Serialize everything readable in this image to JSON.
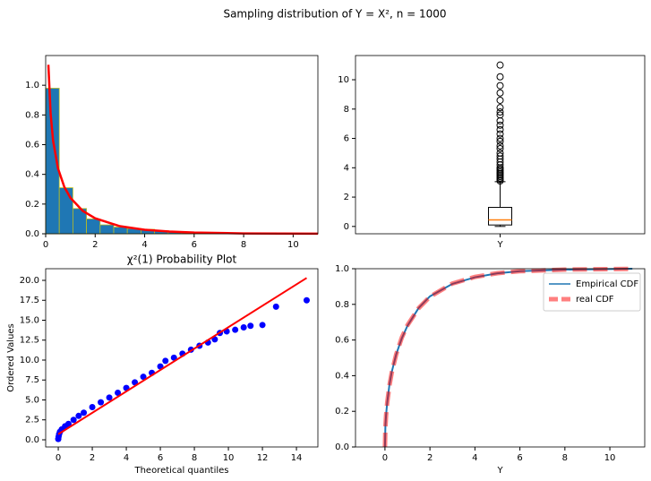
{
  "title": "Sampling distribution of Y = X², n = 1000",
  "chart_data": [
    {
      "type": "histogram",
      "xlim": [
        0,
        11
      ],
      "xticks": [
        0,
        2,
        4,
        6,
        8,
        10
      ],
      "ylim": [
        0,
        1.2
      ],
      "yticks": [
        {
          "value": 0,
          "label": "0.0"
        },
        0.2,
        0.4,
        0.6,
        0.8,
        {
          "value": 1,
          "label": "1.0"
        }
      ],
      "bins": [
        0,
        0.55,
        1.1,
        1.65,
        2.2,
        2.75,
        3.3,
        3.85,
        4.4,
        4.95,
        5.5,
        6.05,
        6.6,
        7.15,
        7.7,
        8.25,
        8.8,
        9.35,
        9.9,
        10.45,
        11
      ],
      "counts": [
        0.98,
        0.31,
        0.17,
        0.1,
        0.06,
        0.045,
        0.035,
        0.03,
        0.02,
        0.015,
        0.012,
        0.01,
        0.008,
        0.006,
        0.005,
        0.004,
        0.003,
        0.002,
        0.002,
        0.002
      ],
      "color": "#1f77b4",
      "edgecolor": "#bcbd22",
      "series": [
        {
          "type": "line",
          "color": "#ff0000",
          "x": [
            0.11,
            0.2,
            0.3,
            0.5,
            0.75,
            1,
            1.5,
            2,
            3,
            4,
            5,
            6,
            8,
            11
          ],
          "values": [
            1.138,
            0.807,
            0.627,
            0.439,
            0.317,
            0.242,
            0.154,
            0.104,
            0.051,
            0.027,
            0.015,
            0.0081,
            0.0026,
            0.0005
          ]
        }
      ]
    },
    {
      "type": "box",
      "categories": [
        "Y"
      ],
      "ylim": [
        -0.5,
        11.65
      ],
      "yticks": [
        0,
        2,
        4,
        6,
        8,
        10
      ],
      "color": "#000000",
      "median_color": "#ff7f0e",
      "whislo": 0,
      "q1": 0.1,
      "median": 0.45,
      "q3": 1.3,
      "whishi": 3.05,
      "fliers": [
        3.1,
        3.2,
        3.3,
        3.4,
        3.5,
        3.6,
        3.7,
        3.8,
        3.9,
        4.0,
        4.2,
        4.4,
        4.6,
        4.8,
        5.0,
        5.3,
        5.5,
        5.8,
        6.0,
        6.3,
        6.6,
        6.9,
        7.2,
        7.6,
        7.8,
        8.1,
        8.6,
        9.1,
        9.6,
        10.2,
        11.0
      ]
    },
    {
      "type": "scatter",
      "title": "χ²(1) Probability Plot",
      "xlabel": "Theoretical quantiles",
      "ylabel": "Ordered Values",
      "xlim": [
        -0.74,
        15.26
      ],
      "xticks": [
        0,
        2,
        4,
        6,
        8,
        10,
        12,
        14
      ],
      "ylim": [
        -0.9,
        21.46
      ],
      "yticks": [
        {
          "value": 0,
          "label": "0.0"
        },
        2.5,
        {
          "value": 5,
          "label": "5.0"
        },
        7.5,
        {
          "value": 10,
          "label": "10.0"
        },
        12.5,
        {
          "value": 15,
          "label": "15.0"
        },
        17.5,
        {
          "value": 20,
          "label": "20.0"
        }
      ],
      "series": [
        {
          "type": "scatter",
          "color": "#0000ff",
          "x": [
            0,
            0.02,
            0.05,
            0.1,
            0.2,
            0.4,
            0.6,
            0.9,
            1.2,
            1.5,
            2,
            2.5,
            3,
            3.5,
            4,
            4.5,
            5,
            5.5,
            6,
            6.3,
            6.8,
            7.3,
            7.8,
            8.3,
            8.8,
            9.2,
            9.5,
            9.9,
            10.4,
            10.9,
            11.3,
            12,
            12.8,
            14.6
          ],
          "values": [
            0.1,
            0.4,
            0.7,
            1.0,
            1.3,
            1.7,
            2.0,
            2.5,
            3.0,
            3.4,
            4.1,
            4.7,
            5.3,
            5.9,
            6.5,
            7.2,
            7.9,
            8.4,
            9.2,
            9.9,
            10.3,
            10.8,
            11.3,
            11.8,
            12.2,
            12.6,
            13.4,
            13.6,
            13.8,
            14.1,
            14.3,
            14.4,
            16.7,
            17.5
          ]
        },
        {
          "type": "line",
          "color": "#ff0000",
          "x": [
            0,
            14.6
          ],
          "values": [
            0.7,
            20.3
          ]
        }
      ]
    },
    {
      "type": "line",
      "xlabel": "Y",
      "xlim": [
        -1.31,
        11.55
      ],
      "xticks": [
        0,
        2,
        4,
        6,
        8,
        10
      ],
      "ylim": [
        0,
        1
      ],
      "yticks": [
        {
          "value": 0,
          "label": "0.0"
        },
        0.2,
        0.4,
        0.6,
        0.8,
        {
          "value": 1,
          "label": "1.0"
        }
      ],
      "legend": "upper right",
      "series": [
        {
          "type": "line",
          "name": "Empirical CDF",
          "color": "#1f77b4",
          "x": [
            0,
            0.02,
            0.05,
            0.1,
            0.2,
            0.3,
            0.5,
            0.75,
            1,
            1.5,
            2,
            3,
            4,
            5,
            6,
            8,
            11
          ],
          "values": [
            0,
            0.12,
            0.18,
            0.25,
            0.35,
            0.42,
            0.52,
            0.61,
            0.68,
            0.78,
            0.845,
            0.915,
            0.952,
            0.974,
            0.986,
            0.995,
            1
          ]
        },
        {
          "type": "dashed",
          "name": "real CDF",
          "color": "#ff0000",
          "x": [
            0,
            0.02,
            0.05,
            0.1,
            0.2,
            0.3,
            0.5,
            0.75,
            1,
            1.5,
            2,
            3,
            4,
            5,
            6,
            8,
            11
          ],
          "values": [
            0,
            0.1125,
            0.177,
            0.248,
            0.345,
            0.416,
            0.52,
            0.614,
            0.683,
            0.779,
            0.843,
            0.917,
            0.954,
            0.975,
            0.986,
            0.995,
            0.9991
          ]
        }
      ]
    }
  ]
}
